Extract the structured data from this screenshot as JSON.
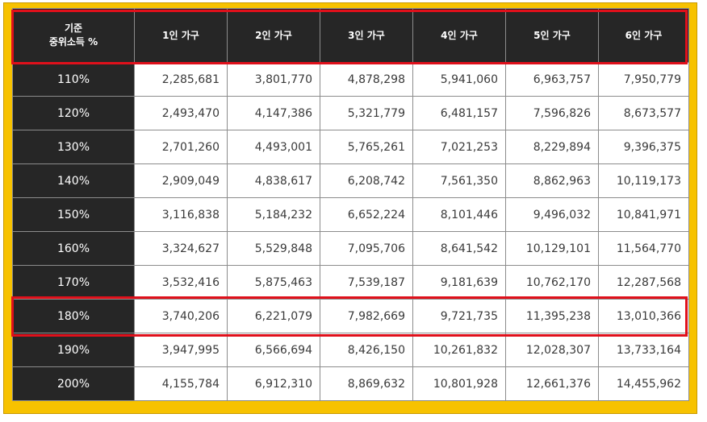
{
  "table": {
    "header": {
      "first_line1": "기준",
      "first_line2": "중위소득 %",
      "columns": [
        "1인 가구",
        "2인 가구",
        "3인 가구",
        "4인 가구",
        "5인 가구",
        "6인 가구"
      ]
    },
    "rows": [
      {
        "pct": "110%",
        "values": [
          "2,285,681",
          "3,801,770",
          "4,878,298",
          "5,941,060",
          "6,963,757",
          "7,950,779"
        ]
      },
      {
        "pct": "120%",
        "values": [
          "2,493,470",
          "4,147,386",
          "5,321,779",
          "6,481,157",
          "7,596,826",
          "8,673,577"
        ]
      },
      {
        "pct": "130%",
        "values": [
          "2,701,260",
          "4,493,001",
          "5,765,261",
          "7,021,253",
          "8,229,894",
          "9,396,375"
        ]
      },
      {
        "pct": "140%",
        "values": [
          "2,909,049",
          "4,838,617",
          "6,208,742",
          "7,561,350",
          "8,862,963",
          "10,119,173"
        ]
      },
      {
        "pct": "150%",
        "values": [
          "3,116,838",
          "5,184,232",
          "6,652,224",
          "8,101,446",
          "9,496,032",
          "10,841,971"
        ]
      },
      {
        "pct": "160%",
        "values": [
          "3,324,627",
          "5,529,848",
          "7,095,706",
          "8,641,542",
          "10,129,101",
          "11,564,770"
        ]
      },
      {
        "pct": "170%",
        "values": [
          "3,532,416",
          "5,875,463",
          "7,539,187",
          "9,181,639",
          "10,762,170",
          "12,287,568"
        ]
      },
      {
        "pct": "180%",
        "values": [
          "3,740,206",
          "6,221,079",
          "7,982,669",
          "9,721,735",
          "11,395,238",
          "13,010,366"
        ]
      },
      {
        "pct": "190%",
        "values": [
          "3,947,995",
          "6,566,694",
          "8,426,150",
          "10,261,832",
          "12,028,307",
          "13,733,164"
        ]
      },
      {
        "pct": "200%",
        "values": [
          "4,155,784",
          "6,912,310",
          "8,869,632",
          "10,801,928",
          "12,661,376",
          "14,455,962"
        ]
      }
    ]
  },
  "highlight": {
    "color": "#e0101b",
    "highlighted_row": "180%"
  },
  "colors": {
    "frame": "#f7c200",
    "header_bg": "#262626",
    "header_text": "#ffffff"
  }
}
